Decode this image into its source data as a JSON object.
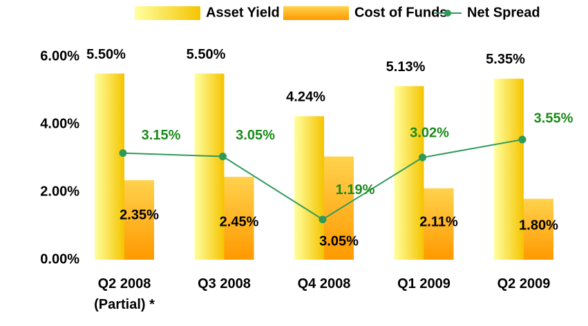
{
  "chart_data": {
    "type": "bar",
    "categories": [
      "Q2 2008\n(Partial) *",
      "Q3 2008",
      "Q4 2008",
      "Q1 2009",
      "Q2 2009"
    ],
    "series": [
      {
        "name": "Asset Yield",
        "type": "bar",
        "color": "#f5c400",
        "values": [
          5.5,
          5.5,
          4.24,
          5.13,
          5.35
        ],
        "value_labels": [
          "5.50%",
          "5.50%",
          "4.24%",
          "5.13%",
          "5.35%"
        ]
      },
      {
        "name": "Cost of Funds",
        "type": "bar",
        "color": "#ff9900",
        "values": [
          2.35,
          2.45,
          3.05,
          2.11,
          1.8
        ],
        "value_labels": [
          "2.35%",
          "2.45%",
          "3.05%",
          "2.11%",
          "1.80%"
        ]
      },
      {
        "name": "Net Spread",
        "type": "line",
        "color": "#2e9a5a",
        "label_color": "#1a8a1a",
        "values": [
          3.15,
          3.05,
          1.19,
          3.02,
          3.55
        ],
        "value_labels": [
          "3.15%",
          "3.05%",
          "1.19%",
          "3.02%",
          "3.55%"
        ]
      }
    ],
    "ylim": [
      0,
      6
    ],
    "yticks": [
      {
        "value": 0,
        "label": "0.00%"
      },
      {
        "value": 2,
        "label": "2.00%"
      },
      {
        "value": 4,
        "label": "4.00%"
      },
      {
        "value": 6,
        "label": "6.00%"
      }
    ],
    "grid": false,
    "legend": "top"
  }
}
